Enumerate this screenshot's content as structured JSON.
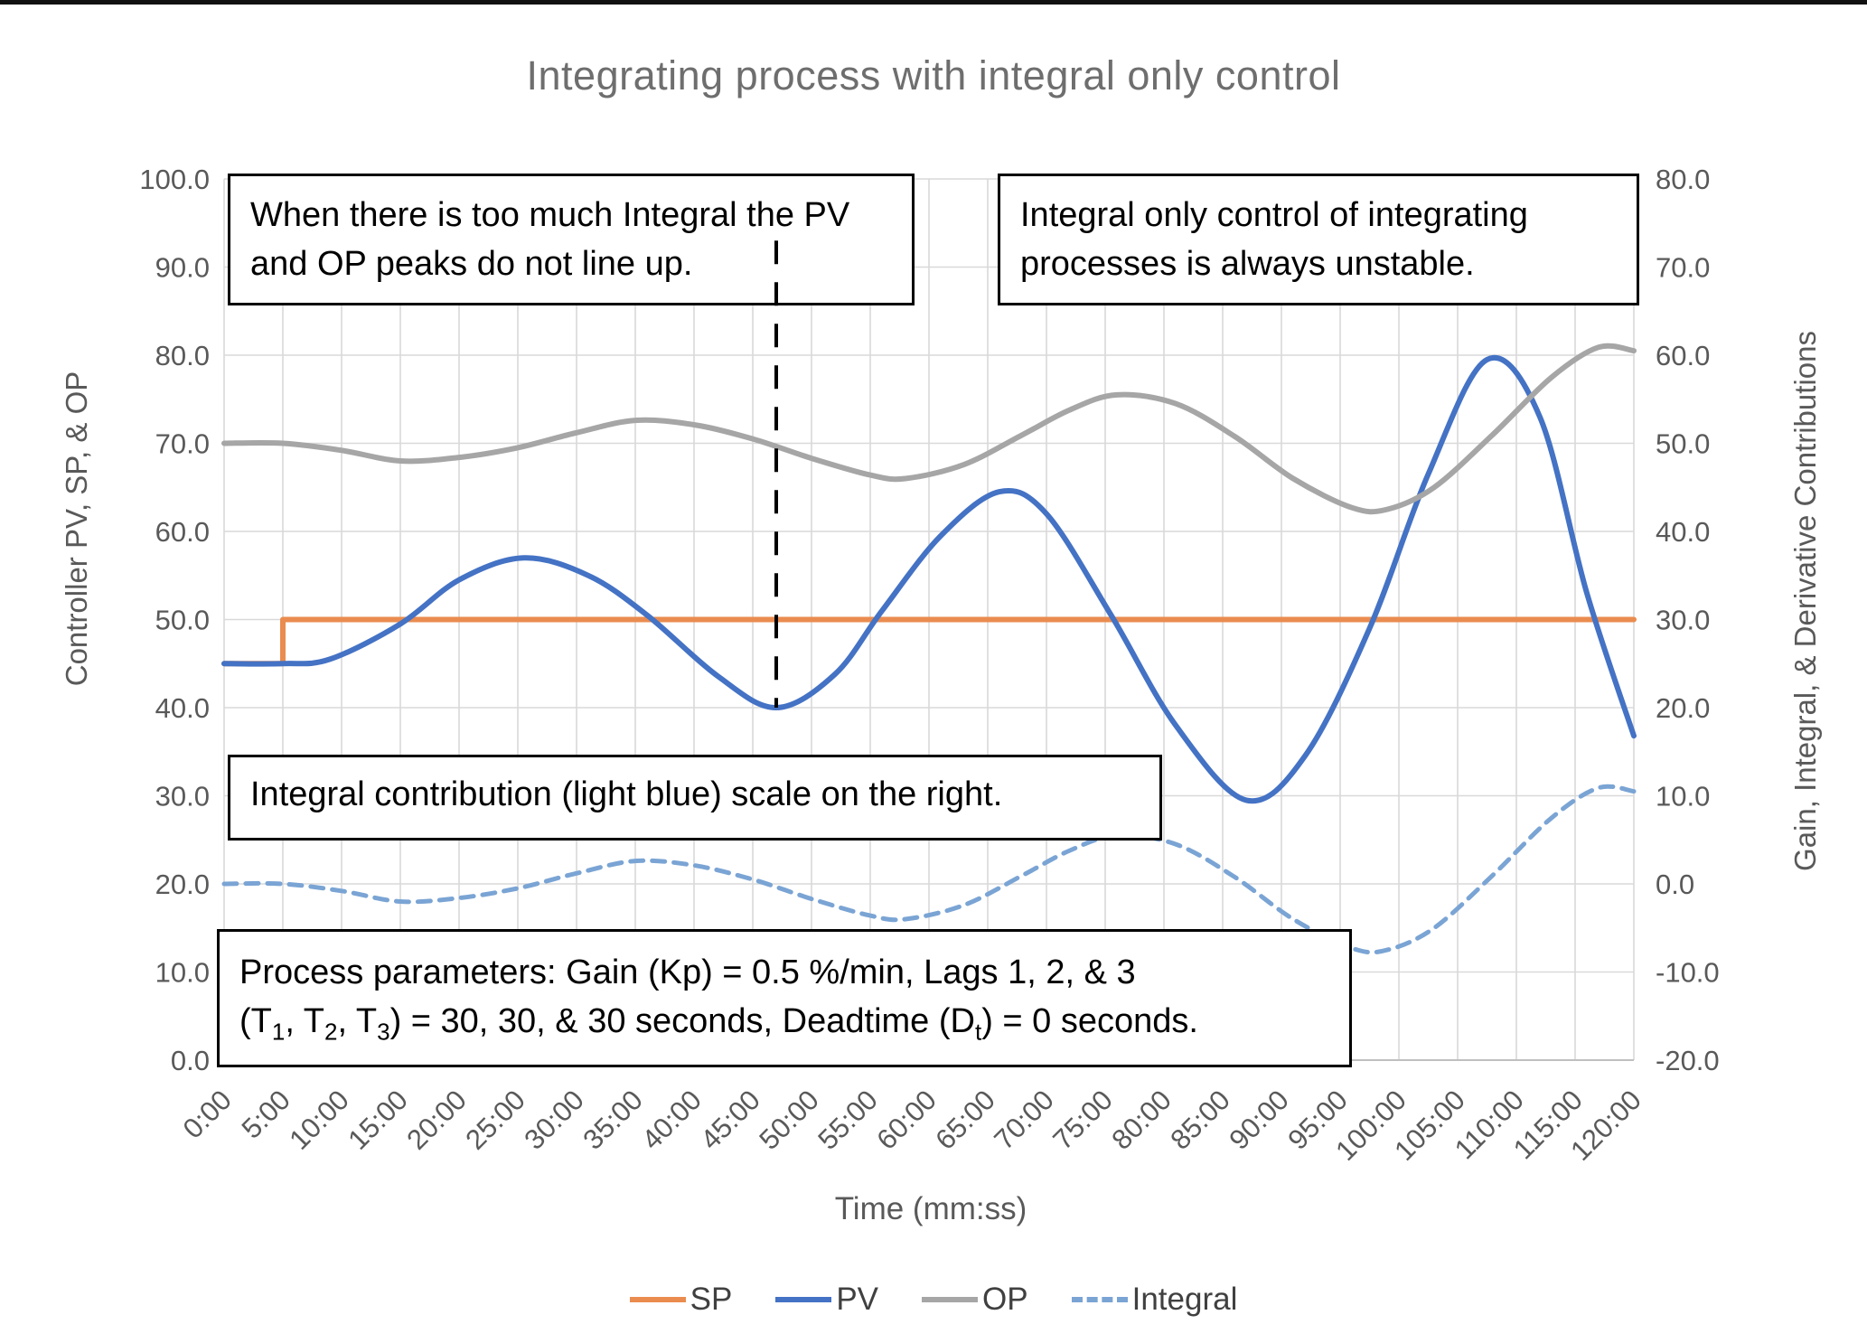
{
  "title_block": {
    "title": "Integrating process with integral only control"
  },
  "annotations": {
    "box1": "When there is too much Integral the PV and OP peaks do not line up.",
    "box2": "Integral only control of integrating processes is always unstable.",
    "box3": "Integral contribution (light blue) scale on the right.",
    "box4_line1": "Process parameters:  Gain (Kp) = 0.5 %/min, Lags 1, 2, & 3",
    "box4_line2_parts": [
      {
        "t": "(T"
      },
      {
        "sub": "1"
      },
      {
        "t": ", T"
      },
      {
        "sub": "2"
      },
      {
        "t": ", T"
      },
      {
        "sub": "3"
      },
      {
        "t": ") = 30, 30, & 30 seconds, Deadtime (D"
      },
      {
        "sub": "t"
      },
      {
        "t": ") = 0 seconds."
      }
    ]
  },
  "chart_data": {
    "type": "line",
    "title": "Integrating process with integral only control",
    "x_axis": {
      "title": "Time (mm:ss)",
      "unit": "minutes:seconds",
      "min_minutes": 0,
      "max_minutes": 120,
      "tick_step_minutes": 5,
      "tick_labels": [
        "0:00",
        "5:00",
        "10:00",
        "15:00",
        "20:00",
        "25:00",
        "30:00",
        "35:00",
        "40:00",
        "45:00",
        "50:00",
        "55:00",
        "60:00",
        "65:00",
        "70:00",
        "75:00",
        "80:00",
        "85:00",
        "90:00",
        "95:00",
        "100:00",
        "105:00",
        "110:00",
        "115:00",
        "120:00"
      ]
    },
    "y_axis_left": {
      "title": "Controller PV, SP, & OP",
      "min": 0,
      "max": 100,
      "step": 10,
      "tick_labels_top_to_bottom": [
        "100.0",
        "90.0",
        "80.0",
        "70.0",
        "60.0",
        "50.0",
        "40.0",
        "30.0",
        "20.0",
        "10.0",
        "0.0"
      ]
    },
    "y_axis_right": {
      "title": "Gain, Integral, & Derivative Contributions",
      "min": -20,
      "max": 80,
      "step": 10,
      "offset_from_left_axis": -20,
      "tick_labels_top_to_bottom": [
        "80.0",
        "70.0",
        "60.0",
        "50.0",
        "40.0",
        "30.0",
        "20.0",
        "10.0",
        "0.0",
        "-10.0",
        "-20.0"
      ]
    },
    "grid": {
      "show": true,
      "color": "#d9d9d9"
    },
    "legend_position": "bottom",
    "series": [
      {
        "name": "SP",
        "axis": "left",
        "color": "#ea8c4f",
        "style": "solid",
        "smooth": false,
        "points": [
          [
            0,
            45
          ],
          [
            5,
            45
          ],
          [
            5,
            50
          ],
          [
            120,
            50
          ]
        ]
      },
      {
        "name": "PV",
        "axis": "left",
        "color": "#4472c4",
        "style": "solid",
        "smooth": true,
        "points": [
          [
            0,
            45
          ],
          [
            5,
            45
          ],
          [
            9,
            45.5
          ],
          [
            15,
            49.5
          ],
          [
            20,
            54.5
          ],
          [
            25.5,
            57
          ],
          [
            31,
            55
          ],
          [
            36,
            50.5
          ],
          [
            42,
            43.6
          ],
          [
            47,
            40
          ],
          [
            52,
            43.8
          ],
          [
            56,
            51
          ],
          [
            61,
            59.5
          ],
          [
            66,
            64.5
          ],
          [
            70,
            62
          ],
          [
            75.5,
            50.5
          ],
          [
            81,
            38
          ],
          [
            87,
            29.5
          ],
          [
            92,
            34.5
          ],
          [
            97.5,
            49
          ],
          [
            102.5,
            66.5
          ],
          [
            107.5,
            79.5
          ],
          [
            112,
            73
          ],
          [
            116,
            53
          ],
          [
            120,
            36.8
          ]
        ]
      },
      {
        "name": "OP",
        "axis": "left",
        "color": "#a6a6a6",
        "style": "solid",
        "smooth": true,
        "points": [
          [
            0,
            70
          ],
          [
            5,
            70
          ],
          [
            10,
            69.2
          ],
          [
            15,
            68
          ],
          [
            20,
            68.4
          ],
          [
            25,
            69.5
          ],
          [
            30,
            71.2
          ],
          [
            35,
            72.6
          ],
          [
            40,
            72.1
          ],
          [
            45,
            70.5
          ],
          [
            50,
            68.3
          ],
          [
            55,
            66.4
          ],
          [
            58,
            66
          ],
          [
            63,
            67.6
          ],
          [
            68,
            71
          ],
          [
            72,
            73.8
          ],
          [
            76,
            75.5
          ],
          [
            81,
            74.5
          ],
          [
            86,
            70.8
          ],
          [
            91,
            66
          ],
          [
            96,
            62.7
          ],
          [
            99,
            62.5
          ],
          [
            103,
            65
          ],
          [
            108,
            71
          ],
          [
            113,
            77.5
          ],
          [
            117,
            80.9
          ],
          [
            120,
            80.5
          ]
        ]
      },
      {
        "name": "Integral",
        "axis": "right",
        "color": "#7aa4d4",
        "style": "dashed",
        "smooth": true,
        "points": [
          [
            0,
            0
          ],
          [
            5,
            0
          ],
          [
            10,
            -0.8
          ],
          [
            15,
            -2
          ],
          [
            20,
            -1.6
          ],
          [
            25,
            -0.5
          ],
          [
            30,
            1.2
          ],
          [
            35,
            2.6
          ],
          [
            40,
            2.1
          ],
          [
            45,
            0.5
          ],
          [
            50,
            -1.7
          ],
          [
            55,
            -3.6
          ],
          [
            58,
            -4
          ],
          [
            63,
            -2.4
          ],
          [
            68,
            1
          ],
          [
            72,
            3.8
          ],
          [
            76,
            5.5
          ],
          [
            81,
            4.5
          ],
          [
            86,
            0.8
          ],
          [
            91,
            -4
          ],
          [
            96,
            -7.3
          ],
          [
            99,
            -7.5
          ],
          [
            103,
            -5
          ],
          [
            108,
            1
          ],
          [
            113,
            7.5
          ],
          [
            117,
            10.9
          ],
          [
            120,
            10.5
          ]
        ]
      }
    ],
    "marker_line": {
      "t_minutes": 47,
      "value_top_left_axis": 93,
      "value_bottom_left_axis": 40,
      "color": "#000000",
      "style": "dashed"
    }
  },
  "colors": {
    "grid": "#d9d9d9",
    "axis_text": "#595959",
    "title_text": "#6e6e6e",
    "legend_text": "#404040",
    "sp": "#ea8c4f",
    "pv": "#4472c4",
    "op": "#a6a6a6",
    "integral": "#7aa4d4"
  }
}
